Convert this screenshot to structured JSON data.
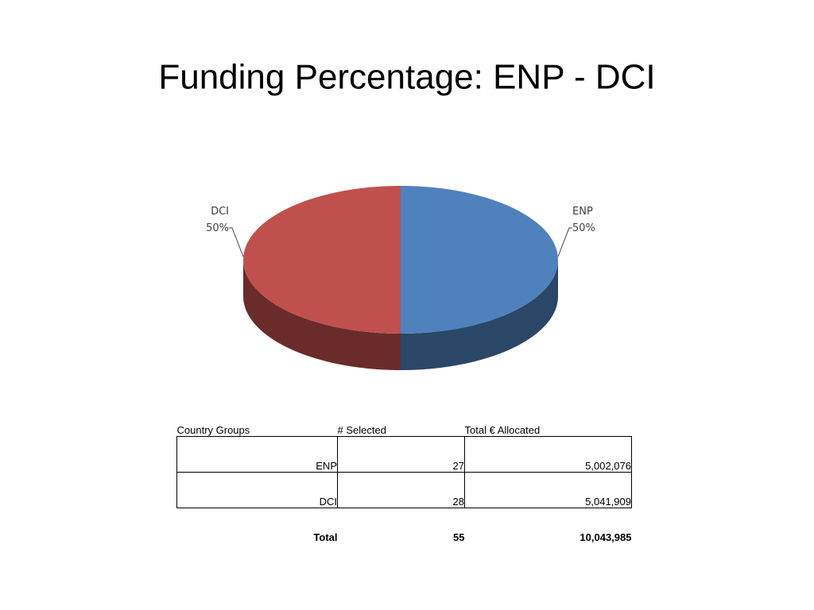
{
  "chart_data": {
    "type": "pie",
    "title": "Funding Percentage: ENP - DCI",
    "categories": [
      "ENP",
      "DCI"
    ],
    "values": [
      50,
      50
    ],
    "value_labels": [
      "50%",
      "50%"
    ],
    "colors": [
      "#4f81bd",
      "#c0504d"
    ]
  },
  "table": {
    "header": [
      "Country Groups",
      "# Selected",
      "Total € Allocated"
    ],
    "rows": [
      [
        "ENP",
        "27",
        "5,002,076"
      ],
      [
        "DCI",
        "28",
        "5,041,909"
      ]
    ],
    "total": [
      "Total",
      "55",
      "10,043,985"
    ]
  }
}
